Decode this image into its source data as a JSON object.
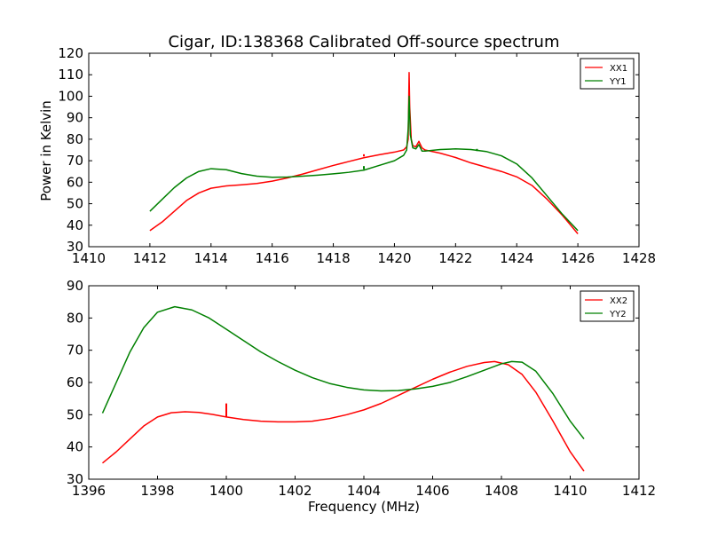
{
  "figure": {
    "title": "Cigar, ID:138368 Calibrated Off-source spectrum"
  },
  "chart_data": [
    {
      "type": "line",
      "title": "Cigar, ID:138368 Calibrated Off-source spectrum",
      "xlabel": "",
      "ylabel": "Power in Kelvin",
      "xlim": [
        1410,
        1428
      ],
      "ylim": [
        30,
        120
      ],
      "xticks": [
        1410,
        1412,
        1414,
        1416,
        1418,
        1420,
        1422,
        1424,
        1426,
        1428
      ],
      "yticks": [
        30,
        40,
        50,
        60,
        70,
        80,
        90,
        100,
        110,
        120
      ],
      "grid": false,
      "legend": "top-right",
      "series": [
        {
          "name": "XX1",
          "color": "#ff0000",
          "points": [
            [
              1412.0,
              37.5
            ],
            [
              1412.4,
              41.5
            ],
            [
              1412.8,
              46.5
            ],
            [
              1413.2,
              51.5
            ],
            [
              1413.6,
              55.0
            ],
            [
              1414.0,
              57.2
            ],
            [
              1414.5,
              58.3
            ],
            [
              1415.0,
              58.8
            ],
            [
              1415.5,
              59.4
            ],
            [
              1416.0,
              60.5
            ],
            [
              1416.5,
              62.0
            ],
            [
              1417.0,
              63.8
            ],
            [
              1417.5,
              65.8
            ],
            [
              1418.0,
              67.8
            ],
            [
              1418.5,
              69.6
            ],
            [
              1419.0,
              71.4
            ],
            [
              1419.5,
              72.8
            ],
            [
              1420.0,
              74.0
            ],
            [
              1420.3,
              75.0
            ],
            [
              1420.4,
              76.5
            ],
            [
              1420.45,
              80.0
            ],
            [
              1420.48,
              111.0
            ],
            [
              1420.5,
              95.0
            ],
            [
              1420.55,
              80.0
            ],
            [
              1420.6,
              77.0
            ],
            [
              1420.7,
              76.5
            ],
            [
              1420.8,
              79.0
            ],
            [
              1420.9,
              76.0
            ],
            [
              1421.0,
              75.0
            ],
            [
              1421.5,
              73.5
            ],
            [
              1422.0,
              71.5
            ],
            [
              1422.5,
              69.0
            ],
            [
              1423.0,
              67.0
            ],
            [
              1423.5,
              65.0
            ],
            [
              1424.0,
              62.5
            ],
            [
              1424.5,
              58.5
            ],
            [
              1425.0,
              52.0
            ],
            [
              1425.5,
              44.5
            ],
            [
              1426.0,
              36.0
            ]
          ]
        },
        {
          "name": "YY1",
          "color": "#008000",
          "points": [
            [
              1412.0,
              46.5
            ],
            [
              1412.4,
              52.0
            ],
            [
              1412.8,
              57.5
            ],
            [
              1413.2,
              62.0
            ],
            [
              1413.6,
              65.0
            ],
            [
              1414.0,
              66.3
            ],
            [
              1414.5,
              65.8
            ],
            [
              1415.0,
              64.0
            ],
            [
              1415.5,
              62.8
            ],
            [
              1416.0,
              62.3
            ],
            [
              1416.5,
              62.4
            ],
            [
              1417.0,
              62.8
            ],
            [
              1417.5,
              63.3
            ],
            [
              1418.0,
              63.9
            ],
            [
              1418.5,
              64.6
            ],
            [
              1419.0,
              65.6
            ],
            [
              1419.5,
              67.8
            ],
            [
              1420.0,
              70.0
            ],
            [
              1420.3,
              72.5
            ],
            [
              1420.4,
              75.0
            ],
            [
              1420.45,
              85.0
            ],
            [
              1420.48,
              100.0
            ],
            [
              1420.52,
              82.0
            ],
            [
              1420.6,
              76.0
            ],
            [
              1420.7,
              75.5
            ],
            [
              1420.8,
              77.5
            ],
            [
              1420.9,
              74.5
            ],
            [
              1421.0,
              74.5
            ],
            [
              1421.5,
              75.2
            ],
            [
              1422.0,
              75.5
            ],
            [
              1422.5,
              75.2
            ],
            [
              1423.0,
              74.3
            ],
            [
              1423.5,
              72.3
            ],
            [
              1424.0,
              68.5
            ],
            [
              1424.5,
              62.0
            ],
            [
              1425.0,
              53.5
            ],
            [
              1425.5,
              45.0
            ],
            [
              1426.0,
              37.5
            ]
          ]
        }
      ],
      "spikes": [
        {
          "series": "XX1",
          "x": 1419.0,
          "y_from": 72.0,
          "y_to": 73.0
        },
        {
          "series": "YY1",
          "x": 1419.0,
          "y_from": 66.0,
          "y_to": 67.5
        },
        {
          "series": "YY1",
          "x": 1422.7,
          "y_from": 74.5,
          "y_to": 75.5
        }
      ]
    },
    {
      "type": "line",
      "title": "",
      "xlabel": "Frequency (MHz)",
      "ylabel": "",
      "xlim": [
        1396,
        1412
      ],
      "ylim": [
        30,
        90
      ],
      "xticks": [
        1396,
        1398,
        1400,
        1402,
        1404,
        1406,
        1408,
        1410,
        1412
      ],
      "yticks": [
        30,
        40,
        50,
        60,
        70,
        80,
        90
      ],
      "grid": false,
      "legend": "top-right",
      "series": [
        {
          "name": "XX2",
          "color": "#ff0000",
          "points": [
            [
              1396.4,
              35.0
            ],
            [
              1396.8,
              38.5
            ],
            [
              1397.2,
              42.5
            ],
            [
              1397.6,
              46.5
            ],
            [
              1398.0,
              49.3
            ],
            [
              1398.4,
              50.6
            ],
            [
              1398.8,
              50.9
            ],
            [
              1399.2,
              50.7
            ],
            [
              1399.6,
              50.1
            ],
            [
              1400.0,
              49.3
            ],
            [
              1400.5,
              48.5
            ],
            [
              1401.0,
              48.0
            ],
            [
              1401.5,
              47.8
            ],
            [
              1402.0,
              47.8
            ],
            [
              1402.5,
              48.0
            ],
            [
              1403.0,
              48.8
            ],
            [
              1403.5,
              50.0
            ],
            [
              1404.0,
              51.5
            ],
            [
              1404.5,
              53.5
            ],
            [
              1405.0,
              56.0
            ],
            [
              1405.5,
              58.5
            ],
            [
              1406.0,
              61.0
            ],
            [
              1406.5,
              63.2
            ],
            [
              1407.0,
              65.0
            ],
            [
              1407.5,
              66.2
            ],
            [
              1407.8,
              66.5
            ],
            [
              1408.2,
              65.5
            ],
            [
              1408.6,
              62.5
            ],
            [
              1409.0,
              57.0
            ],
            [
              1409.5,
              48.0
            ],
            [
              1410.0,
              38.5
            ],
            [
              1410.4,
              32.5
            ]
          ]
        },
        {
          "name": "YY2",
          "color": "#008000",
          "points": [
            [
              1396.4,
              50.5
            ],
            [
              1396.8,
              60.0
            ],
            [
              1397.2,
              69.5
            ],
            [
              1397.6,
              77.0
            ],
            [
              1398.0,
              81.8
            ],
            [
              1398.5,
              83.5
            ],
            [
              1399.0,
              82.5
            ],
            [
              1399.5,
              80.0
            ],
            [
              1400.0,
              76.5
            ],
            [
              1400.5,
              73.0
            ],
            [
              1401.0,
              69.5
            ],
            [
              1401.5,
              66.5
            ],
            [
              1402.0,
              63.8
            ],
            [
              1402.5,
              61.5
            ],
            [
              1403.0,
              59.7
            ],
            [
              1403.5,
              58.5
            ],
            [
              1404.0,
              57.7
            ],
            [
              1404.5,
              57.4
            ],
            [
              1405.0,
              57.5
            ],
            [
              1405.5,
              58.0
            ],
            [
              1406.0,
              58.8
            ],
            [
              1406.5,
              60.0
            ],
            [
              1407.0,
              61.8
            ],
            [
              1407.5,
              63.8
            ],
            [
              1408.0,
              65.8
            ],
            [
              1408.3,
              66.5
            ],
            [
              1408.6,
              66.3
            ],
            [
              1409.0,
              63.5
            ],
            [
              1409.5,
              56.5
            ],
            [
              1410.0,
              48.0
            ],
            [
              1410.4,
              42.5
            ]
          ]
        }
      ],
      "spikes": [
        {
          "series": "XX2",
          "x": 1400.0,
          "y_from": 49.3,
          "y_to": 53.5
        }
      ]
    }
  ]
}
